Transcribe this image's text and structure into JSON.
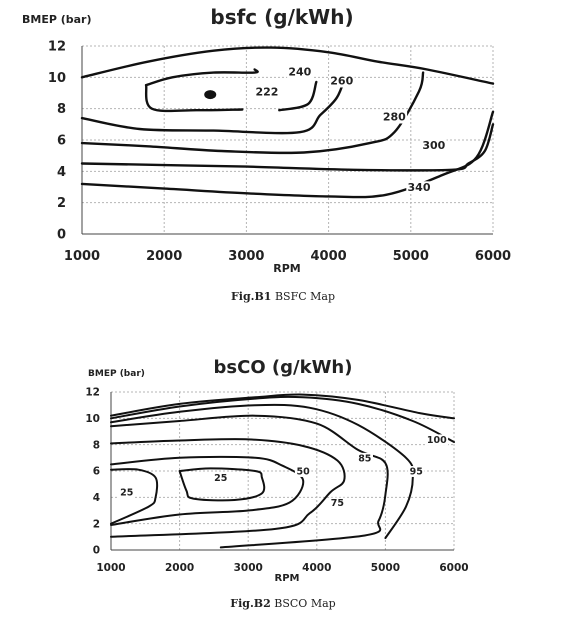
{
  "chart_data": [
    {
      "type": "contour",
      "title": "bsfc (g/kWh)",
      "xlabel": "RPM",
      "ylabel": "BMEP (bar)",
      "xlim": [
        1000,
        6000
      ],
      "ylim": [
        0,
        12
      ],
      "xticks": [
        "1000",
        "2000",
        "3000",
        "4000",
        "5000",
        "6000"
      ],
      "yticks": [
        "0",
        "2",
        "4",
        "6",
        "8",
        "10",
        "12"
      ],
      "grid": true,
      "marker": {
        "x": 2560,
        "y": 8.9
      },
      "contours": [
        {
          "label": "222",
          "label_at": [
            3250,
            8.9
          ],
          "points": [
            [
              1780,
              9.5
            ],
            [
              2100,
              10.0
            ],
            [
              2600,
              10.3
            ],
            [
              3100,
              10.3
            ],
            [
              3100,
              10.5
            ]
          ]
        },
        {
          "label": "222",
          "label_at": null,
          "points": [
            [
              1780,
              9.5
            ],
            [
              1850,
              8.0
            ],
            [
              2400,
              7.9
            ],
            [
              2950,
              7.95
            ]
          ]
        },
        {
          "label": "240",
          "label_at": [
            3650,
            10.2
          ],
          "points": [
            [
              1000,
              7.4
            ],
            [
              1700,
              6.7
            ],
            [
              2600,
              6.6
            ],
            [
              3650,
              6.5
            ],
            [
              3900,
              7.6
            ],
            [
              4100,
              8.7
            ],
            [
              4200,
              10.0
            ]
          ]
        },
        {
          "label": "240",
          "label_at": null,
          "points": [
            [
              3400,
              7.9
            ],
            [
              3750,
              8.3
            ],
            [
              3850,
              9.7
            ]
          ]
        },
        {
          "label": "260",
          "label_at": [
            4160,
            9.6
          ],
          "points": [
            [
              1000,
              5.8
            ],
            [
              1800,
              5.6
            ],
            [
              2700,
              5.3
            ],
            [
              3700,
              5.2
            ],
            [
              4500,
              5.8
            ],
            [
              4800,
              6.5
            ],
            [
              5100,
              9.1
            ],
            [
              5150,
              10.3
            ]
          ]
        },
        {
          "label": "280",
          "label_at": [
            4800,
            7.3
          ],
          "points": [
            [
              1000,
              4.5
            ],
            [
              2000,
              4.4
            ],
            [
              3000,
              4.3
            ],
            [
              4300,
              4.1
            ],
            [
              5500,
              4.1
            ],
            [
              5700,
              4.5
            ],
            [
              5900,
              5.3
            ],
            [
              6000,
              7.0
            ]
          ]
        },
        {
          "label": "300",
          "label_at": [
            5280,
            5.5
          ],
          "points": [
            [
              1000,
              3.2
            ],
            [
              2000,
              2.9
            ],
            [
              3000,
              2.6
            ],
            [
              4000,
              2.4
            ],
            [
              4700,
              2.5
            ],
            [
              5400,
              3.8
            ],
            [
              5800,
              4.9
            ],
            [
              6000,
              7.8
            ]
          ]
        },
        {
          "label": "340",
          "label_at": [
            5100,
            2.8
          ],
          "points": [
            [
              1000,
              10.0
            ],
            [
              1800,
              11.0
            ],
            [
              2600,
              11.7
            ],
            [
              3300,
              11.9
            ],
            [
              4000,
              11.6
            ],
            [
              4600,
              11.0
            ],
            [
              5200,
              10.5
            ],
            [
              6000,
              9.6
            ]
          ]
        }
      ]
    },
    {
      "type": "contour",
      "title": "bsCO (g/kWh)",
      "xlabel": "RPM",
      "ylabel": "BMEP (bar)",
      "xlim": [
        1000,
        6000
      ],
      "ylim": [
        0,
        12
      ],
      "xticks": [
        "1000",
        "2000",
        "3000",
        "4000",
        "5000",
        "6000"
      ],
      "yticks": [
        "0",
        "2",
        "4",
        "6",
        "8",
        "10",
        "12"
      ],
      "grid": true,
      "contours": [
        {
          "label": "25",
          "label_at": [
            1230,
            4.2
          ],
          "points": [
            [
              1000,
              6.1
            ],
            [
              1400,
              6.1
            ],
            [
              1650,
              5.5
            ],
            [
              1650,
              4.0
            ],
            [
              1550,
              3.3
            ],
            [
              1000,
              2.0
            ]
          ]
        },
        {
          "label": "25",
          "label_at": [
            2600,
            5.3
          ],
          "points": [
            [
              2000,
              6.0
            ],
            [
              2450,
              6.2
            ],
            [
              3100,
              6.0
            ],
            [
              3200,
              5.5
            ],
            [
              3200,
              4.3
            ],
            [
              2800,
              3.8
            ],
            [
              2200,
              3.9
            ],
            [
              2100,
              4.5
            ],
            [
              2000,
              6.0
            ]
          ]
        },
        {
          "label": "50",
          "label_at": [
            3800,
            5.8
          ],
          "points": [
            [
              1000,
              6.5
            ],
            [
              2000,
              7.0
            ],
            [
              3100,
              7.0
            ],
            [
              3500,
              6.4
            ],
            [
              3800,
              5.3
            ],
            [
              3600,
              3.6
            ],
            [
              3000,
              3.0
            ],
            [
              2000,
              2.7
            ],
            [
              1000,
              1.9
            ]
          ]
        },
        {
          "label": "75",
          "label_at": [
            4300,
            3.4
          ],
          "points": [
            [
              1000,
              8.1
            ],
            [
              1900,
              8.3
            ],
            [
              3000,
              8.4
            ],
            [
              3800,
              7.9
            ],
            [
              4300,
              6.8
            ],
            [
              4400,
              5.3
            ],
            [
              4200,
              4.4
            ],
            [
              3900,
              2.8
            ],
            [
              3400,
              1.6
            ],
            [
              1000,
              1.0
            ]
          ]
        },
        {
          "label": "85",
          "label_at": [
            4700,
            6.8
          ],
          "points": [
            [
              1000,
              9.4
            ],
            [
              2000,
              9.8
            ],
            [
              3100,
              10.2
            ],
            [
              4000,
              9.6
            ],
            [
              4600,
              7.6
            ],
            [
              5000,
              6.6
            ],
            [
              5000,
              4.2
            ],
            [
              4900,
              2.2
            ],
            [
              4700,
              1.1
            ],
            [
              2600,
              0.2
            ]
          ]
        },
        {
          "label": "95",
          "label_at": [
            5450,
            5.8
          ],
          "points": [
            [
              1000,
              9.7
            ],
            [
              2000,
              10.5
            ],
            [
              3100,
              11.0
            ],
            [
              3900,
              10.8
            ],
            [
              4600,
              9.5
            ],
            [
              5300,
              7.0
            ],
            [
              5400,
              5.5
            ],
            [
              5300,
              3.3
            ],
            [
              5000,
              0.9
            ]
          ]
        },
        {
          "label": "100",
          "label_at": [
            5750,
            8.2
          ],
          "points": [
            [
              1000,
              10.0
            ],
            [
              2000,
              10.9
            ],
            [
              3100,
              11.5
            ],
            [
              3800,
              11.6
            ],
            [
              4600,
              11.1
            ],
            [
              5400,
              9.8
            ],
            [
              6000,
              8.2
            ]
          ]
        },
        {
          "label": "",
          "label_at": null,
          "points": [
            [
              1000,
              10.2
            ],
            [
              2000,
              11.1
            ],
            [
              3100,
              11.6
            ],
            [
              3800,
              11.8
            ],
            [
              4600,
              11.4
            ],
            [
              5500,
              10.4
            ],
            [
              6000,
              10.0
            ]
          ]
        }
      ]
    }
  ],
  "captions": {
    "fig1_bold": "Fig.B1",
    "fig1_text": " BSFC Map",
    "fig2_bold": "Fig.B2",
    "fig2_text": " BSCO Map"
  }
}
